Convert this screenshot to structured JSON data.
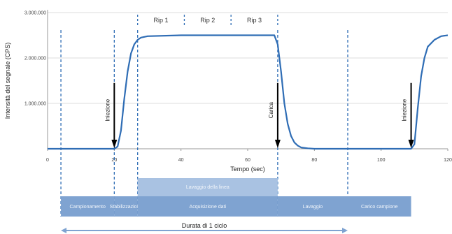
{
  "chart_data": {
    "type": "line",
    "xlabel": "Tempo (sec)",
    "ylabel": "Intensità del segnale (CPS)",
    "xlim": [
      0,
      120
    ],
    "ylim": [
      0,
      3000000
    ],
    "x_ticks": [
      "0",
      "20",
      "40",
      "60",
      "80",
      "100",
      "120"
    ],
    "y_ticks": [
      "3.000.000",
      "2.000.000",
      "1.000.000"
    ],
    "grid": true,
    "series": [
      {
        "values": [
          [
            0,
            0
          ],
          [
            20,
            0
          ],
          [
            21,
            50000
          ],
          [
            22,
            400000
          ],
          [
            23,
            1100000
          ],
          [
            24,
            1700000
          ],
          [
            25,
            2100000
          ],
          [
            26,
            2300000
          ],
          [
            27,
            2400000
          ],
          [
            28,
            2450000
          ],
          [
            30,
            2480000
          ],
          [
            40,
            2500000
          ],
          [
            50,
            2500000
          ],
          [
            60,
            2500000
          ],
          [
            68,
            2500000
          ],
          [
            69,
            2300000
          ],
          [
            70,
            1700000
          ],
          [
            71,
            1000000
          ],
          [
            72,
            550000
          ],
          [
            73,
            280000
          ],
          [
            74,
            140000
          ],
          [
            75,
            70000
          ],
          [
            76,
            30000
          ],
          [
            78,
            10000
          ],
          [
            80,
            0
          ],
          [
            109,
            0
          ],
          [
            110,
            100000
          ],
          [
            111,
            900000
          ],
          [
            112,
            1600000
          ],
          [
            113,
            2000000
          ],
          [
            114,
            2250000
          ],
          [
            116,
            2400000
          ],
          [
            118,
            2480000
          ],
          [
            120,
            2500000
          ]
        ]
      }
    ],
    "replicates": [
      "Rip 1",
      "Rip 2",
      "Rip 3"
    ],
    "replicate_dividers_x": [
      27,
      41,
      55,
      69
    ],
    "phase_dividers_x": [
      4,
      20,
      27,
      69,
      90
    ],
    "annotations": [
      {
        "text": "Iniezione",
        "x": 20
      },
      {
        "text": "Carica",
        "x": 69
      },
      {
        "text": "Iniezione",
        "x": 109
      }
    ]
  },
  "phases": {
    "row1": [
      {
        "text": "Campionamento",
        "x_start": 4,
        "x_end": 20
      },
      {
        "text": "Stabilizzazione",
        "x_start": 20,
        "x_end": 27
      },
      {
        "text": "Acquisizione dati",
        "x_start": 27,
        "x_end": 69
      },
      {
        "text": "Lavaggio",
        "x_start": 69,
        "x_end": 90
      },
      {
        "text": "Carico campione",
        "x_start": 90,
        "x_end": 109
      }
    ],
    "row0": {
      "text": "Lavaggio della linea",
      "x_start": 27,
      "x_end": 69
    }
  },
  "cycle_label": "Durata di 1 ciclo",
  "colors": {
    "line": "#2f6db5",
    "phase_fill": "#7fa3d1",
    "phase_fill_light": "#a9c2e2",
    "divider": "#2f6db5",
    "grid": "#dddddd"
  }
}
